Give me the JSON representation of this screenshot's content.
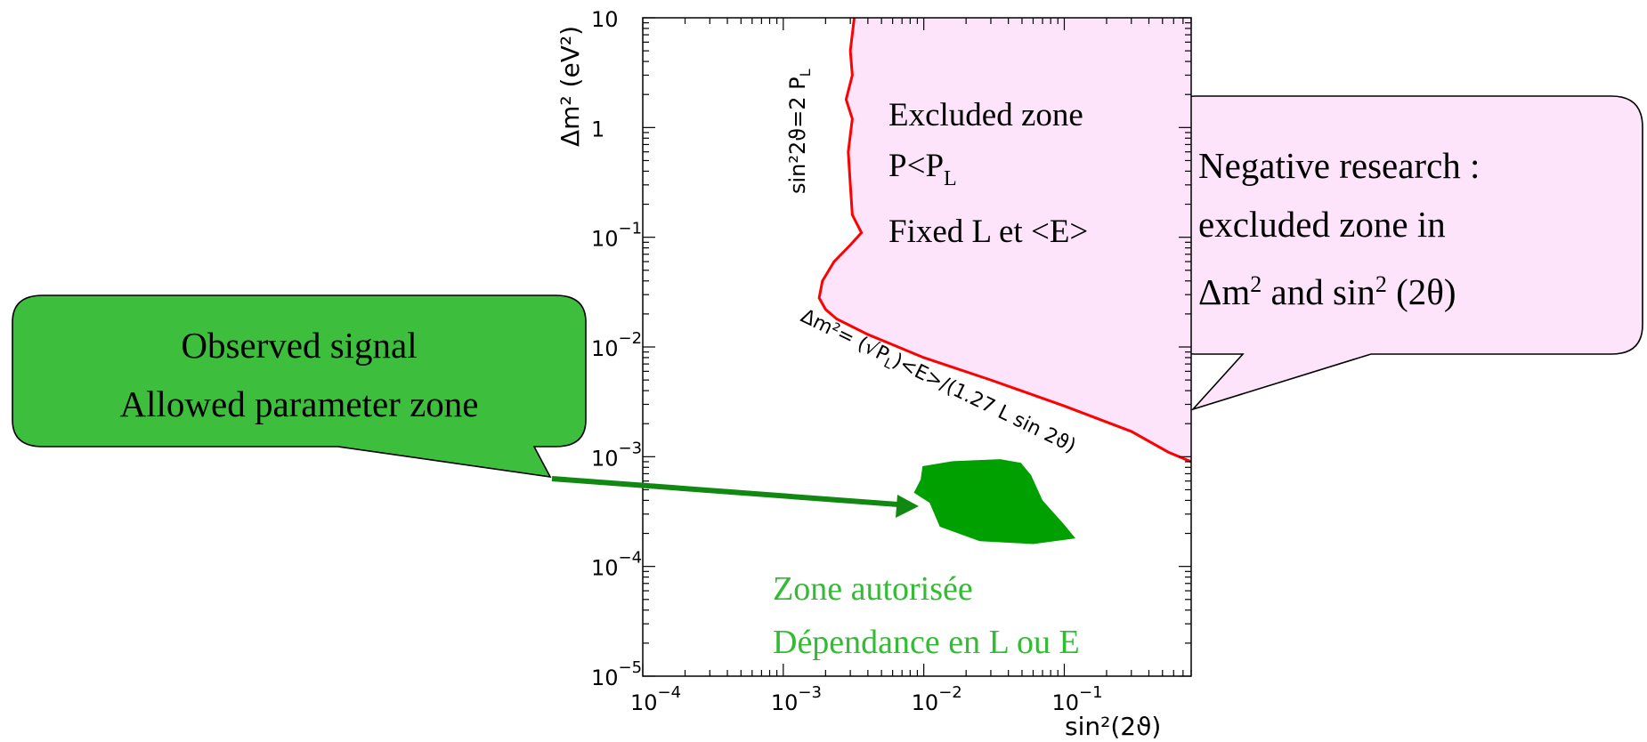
{
  "chart_data": {
    "type": "area",
    "x_scale": "log",
    "y_scale": "log",
    "xlim": [
      0.0001,
      0.8
    ],
    "ylim": [
      1e-05,
      10
    ],
    "xlabel": "sin²(2ϑ)",
    "ylabel": "Δm² (eV²)",
    "x_ticks": [
      {
        "value": 0.0001,
        "base": "10",
        "exp": "−4"
      },
      {
        "value": 0.001,
        "base": "10",
        "exp": "−3"
      },
      {
        "value": 0.01,
        "base": "10",
        "exp": "−2"
      },
      {
        "value": 0.1,
        "base": "10",
        "exp": "−1"
      }
    ],
    "y_ticks": [
      {
        "value": 10,
        "base": "10",
        "exp": ""
      },
      {
        "value": 1,
        "base": "1",
        "exp": ""
      },
      {
        "value": 0.1,
        "base": "10",
        "exp": "−1"
      },
      {
        "value": 0.01,
        "base": "10",
        "exp": "−2"
      },
      {
        "value": 0.001,
        "base": "10",
        "exp": "−3"
      },
      {
        "value": 0.0001,
        "base": "10",
        "exp": "−4"
      },
      {
        "value": 1e-05,
        "base": "10",
        "exp": "−5"
      }
    ],
    "series": [
      {
        "name": "Excluded zone",
        "color": "#fde4fb",
        "boundary_color": "#ff0000",
        "boundary": [
          [
            0.0032,
            10
          ],
          [
            0.003,
            5
          ],
          [
            0.0031,
            3
          ],
          [
            0.0028,
            1.8
          ],
          [
            0.0031,
            1.2
          ],
          [
            0.0029,
            0.6
          ],
          [
            0.003,
            0.3
          ],
          [
            0.0031,
            0.16
          ],
          [
            0.0036,
            0.11
          ],
          [
            0.003,
            0.085
          ],
          [
            0.0023,
            0.06
          ],
          [
            0.0019,
            0.04
          ],
          [
            0.0018,
            0.028
          ],
          [
            0.002,
            0.022
          ],
          [
            0.0024,
            0.018
          ],
          [
            0.004,
            0.013
          ],
          [
            0.01,
            0.008
          ],
          [
            0.03,
            0.005
          ],
          [
            0.1,
            0.0029
          ],
          [
            0.3,
            0.0017
          ],
          [
            0.55,
            0.0011
          ],
          [
            0.8,
            0.0009
          ]
        ]
      },
      {
        "name": "Zone autorisée",
        "color": "#00a000",
        "boundary": [
          [
            0.0098,
            0.00082
          ],
          [
            0.016,
            0.00091
          ],
          [
            0.035,
            0.00095
          ],
          [
            0.049,
            0.00088
          ],
          [
            0.058,
            0.00068
          ],
          [
            0.07,
            0.0004
          ],
          [
            0.1,
            0.00024
          ],
          [
            0.12,
            0.00018
          ],
          [
            0.06,
            0.00016
          ],
          [
            0.025,
            0.00017
          ],
          [
            0.013,
            0.00023
          ],
          [
            0.011,
            0.00038
          ],
          [
            0.0085,
            0.00047
          ],
          [
            0.0095,
            0.00062
          ]
        ]
      }
    ],
    "annotations": {
      "vertical_limit": "sin²2ϑ=2 P",
      "vertical_limit_sub": "L",
      "diagonal_limit": "Δm²= (√P",
      "diagonal_limit_sub": "L",
      "diagonal_limit_tail": ")<E>/(1.27 L sin 2ϑ)",
      "excluded_line1": "Excluded zone",
      "excluded_line2_main": "P<P",
      "excluded_line2_sub": "L",
      "excluded_line3": "Fixed L et <E>",
      "allowed_line1": "Zone autorisée",
      "allowed_line2": "Dépendance en L ou E"
    }
  },
  "callouts": {
    "negative": {
      "line1": "Negative research :",
      "line2": "excluded zone in",
      "line3_a": "Δm",
      "line3_sup1": "2",
      "line3_b": " and sin",
      "line3_sup2": "2",
      "line3_c": " (2θ)",
      "fill": "#fde4fb"
    },
    "observed": {
      "line1": "Observed signal",
      "line2": "Allowed parameter zone",
      "fill": "#3dbf3d"
    }
  },
  "colors": {
    "excluded_fill": "#fde4fb",
    "limit_line": "#ff0000",
    "allowed_fill": "#00a000",
    "allowed_text": "#33bb33",
    "arrow": "#118811"
  }
}
